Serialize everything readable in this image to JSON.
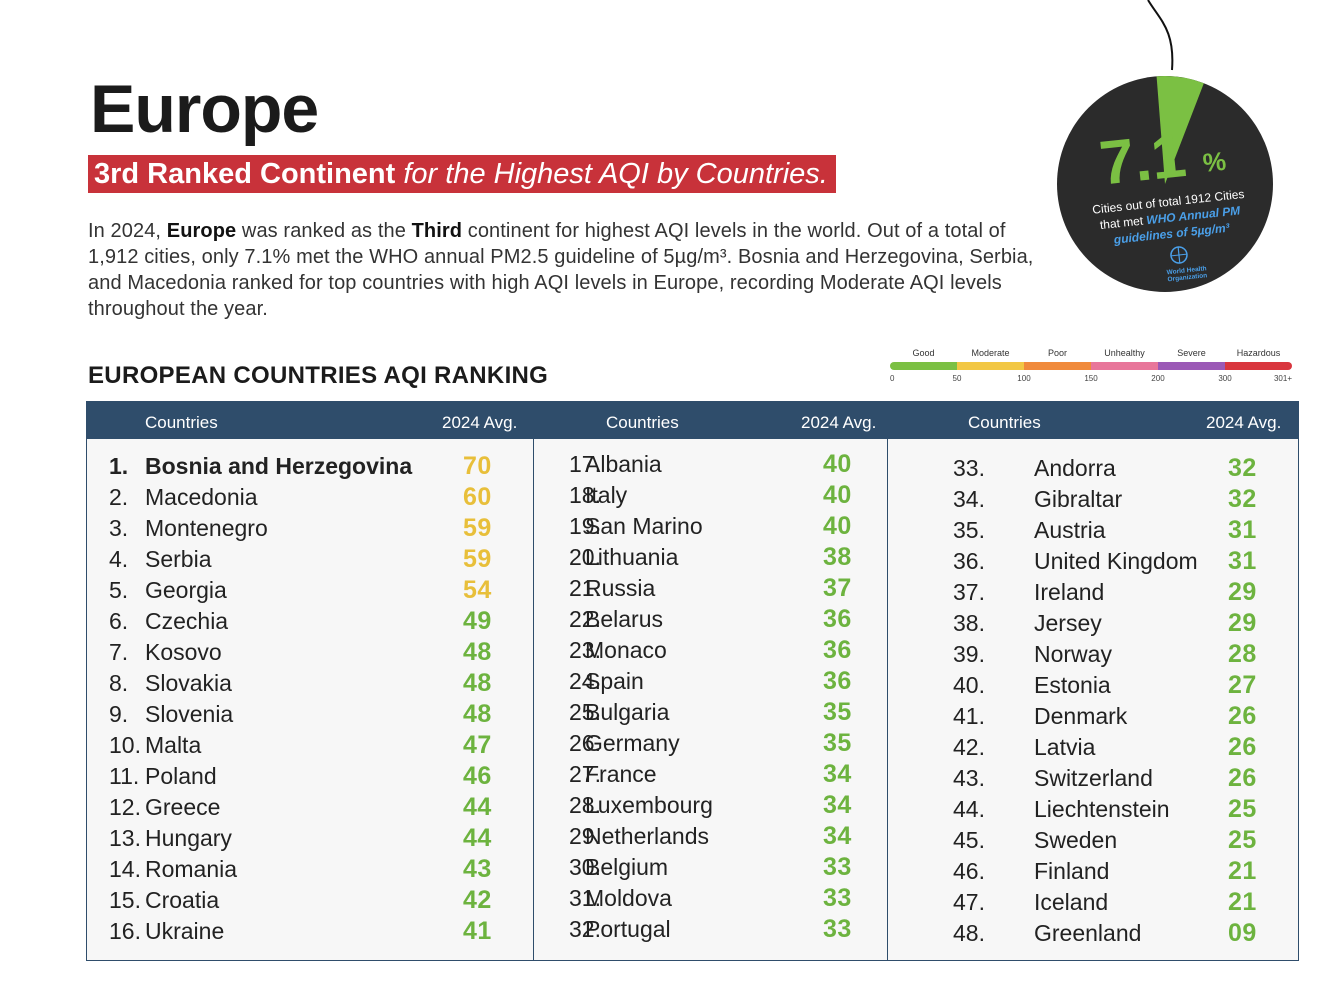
{
  "title": "Europe",
  "banner": {
    "bold": "3rd Ranked Continent",
    "italic": "for the Highest AQI by Countries."
  },
  "intro": {
    "p1": "In 2024, ",
    "b1": "Europe",
    "p2": " was ranked as the ",
    "b2": "Third",
    "p3": " continent for highest AQI levels in the world. Out of a total of 1,912 cities, only 7.1% met the WHO annual PM2.5 guideline of 5µg/m³. Bosnia and Herzegovina, Serbia, and Macedonia ranked for top countries with high AQI levels in Europe, recording Moderate AQI levels throughout the year."
  },
  "badge": {
    "value": "7.1",
    "unit": "%",
    "line1": "Cities out of total 1912 Cities",
    "line2a": "that met ",
    "line2b": "WHO Annual PM",
    "line3": "guidelines of 5µg/m³",
    "org1": "World Health",
    "org2": "Organization",
    "fraction": 0.071,
    "colors": {
      "disc": "#2b2b2b",
      "wedge": "#7bc043",
      "value": "#7bc043",
      "link": "#4a9fe8"
    }
  },
  "section_title": "EUROPEAN COUNTRIES AQI RANKING",
  "scale": {
    "categories": [
      "Good",
      "Moderate",
      "Poor",
      "Unhealthy",
      "Severe",
      "Hazardous"
    ],
    "colors": [
      "#7bc043",
      "#f2c744",
      "#f08a3c",
      "#e8769a",
      "#9b59b6",
      "#d9363e"
    ],
    "ticks": [
      "0",
      "50",
      "100",
      "150",
      "200",
      "300",
      "301+"
    ]
  },
  "table": {
    "headers": [
      {
        "country": "Countries",
        "avg": "2024 Avg."
      },
      {
        "country": "Countries",
        "avg": "2024 Avg."
      },
      {
        "country": "Countries",
        "avg": "2024 Avg."
      }
    ],
    "colors": {
      "moderate": "#e8bf3a",
      "good": "#6db33f",
      "header": "#2f4d6b"
    },
    "columns": [
      [
        {
          "rank": "1.",
          "name": "Bosnia and Herzegovina",
          "value": "70",
          "level": "moderate"
        },
        {
          "rank": "2.",
          "name": "Macedonia",
          "value": "60",
          "level": "moderate"
        },
        {
          "rank": "3.",
          "name": "Montenegro",
          "value": "59",
          "level": "moderate"
        },
        {
          "rank": "4.",
          "name": "Serbia",
          "value": "59",
          "level": "moderate"
        },
        {
          "rank": "5.",
          "name": "Georgia",
          "value": "54",
          "level": "moderate"
        },
        {
          "rank": "6.",
          "name": "Czechia",
          "value": "49",
          "level": "good"
        },
        {
          "rank": "7.",
          "name": "Kosovo",
          "value": "48",
          "level": "good"
        },
        {
          "rank": "8.",
          "name": "Slovakia",
          "value": "48",
          "level": "good"
        },
        {
          "rank": "9.",
          "name": "Slovenia",
          "value": "48",
          "level": "good"
        },
        {
          "rank": "10.",
          "name": "Malta",
          "value": "47",
          "level": "good"
        },
        {
          "rank": "11.",
          "name": "Poland",
          "value": "46",
          "level": "good"
        },
        {
          "rank": "12.",
          "name": "Greece",
          "value": "44",
          "level": "good"
        },
        {
          "rank": "13.",
          "name": "Hungary",
          "value": "44",
          "level": "good"
        },
        {
          "rank": "14.",
          "name": "Romania",
          "value": "43",
          "level": "good"
        },
        {
          "rank": "15.",
          "name": "Croatia",
          "value": "42",
          "level": "good"
        },
        {
          "rank": "16.",
          "name": "Ukraine",
          "value": "41",
          "level": "good"
        }
      ],
      [
        {
          "rank": "17.",
          "name": "Albania",
          "value": "40",
          "level": "good"
        },
        {
          "rank": "18.",
          "name": "Italy",
          "value": "40",
          "level": "good"
        },
        {
          "rank": "19.",
          "name": "San Marino",
          "value": "40",
          "level": "good"
        },
        {
          "rank": "20.",
          "name": "Lithuania",
          "value": "38",
          "level": "good"
        },
        {
          "rank": "21.",
          "name": "Russia",
          "value": "37",
          "level": "good"
        },
        {
          "rank": "22.",
          "name": "Belarus",
          "value": "36",
          "level": "good"
        },
        {
          "rank": "23.",
          "name": "Monaco",
          "value": "36",
          "level": "good"
        },
        {
          "rank": "24.",
          "name": "Spain",
          "value": "36",
          "level": "good"
        },
        {
          "rank": "25.",
          "name": "Bulgaria",
          "value": "35",
          "level": "good"
        },
        {
          "rank": "26.",
          "name": "Germany",
          "value": "35",
          "level": "good"
        },
        {
          "rank": "27.",
          "name": "France",
          "value": "34",
          "level": "good"
        },
        {
          "rank": "28.",
          "name": "Luxembourg",
          "value": "34",
          "level": "good"
        },
        {
          "rank": "29.",
          "name": "Netherlands",
          "value": "34",
          "level": "good"
        },
        {
          "rank": "30.",
          "name": "Belgium",
          "value": "33",
          "level": "good"
        },
        {
          "rank": "31.",
          "name": "Moldova",
          "value": "33",
          "level": "good"
        },
        {
          "rank": "32.",
          "name": "Portugal",
          "value": "33",
          "level": "good"
        }
      ],
      [
        {
          "rank": "33.",
          "name": "Andorra",
          "value": "32",
          "level": "good"
        },
        {
          "rank": "34.",
          "name": "Gibraltar",
          "value": "32",
          "level": "good"
        },
        {
          "rank": "35.",
          "name": "Austria",
          "value": "31",
          "level": "good"
        },
        {
          "rank": "36.",
          "name": "United Kingdom",
          "value": "31",
          "level": "good"
        },
        {
          "rank": "37.",
          "name": "Ireland",
          "value": "29",
          "level": "good"
        },
        {
          "rank": "38.",
          "name": "Jersey",
          "value": "29",
          "level": "good"
        },
        {
          "rank": "39.",
          "name": "Norway",
          "value": "28",
          "level": "good"
        },
        {
          "rank": "40.",
          "name": "Estonia",
          "value": "27",
          "level": "good"
        },
        {
          "rank": "41.",
          "name": "Denmark",
          "value": "26",
          "level": "good"
        },
        {
          "rank": "42.",
          "name": "Latvia",
          "value": "26",
          "level": "good"
        },
        {
          "rank": "43.",
          "name": "Switzerland",
          "value": "26",
          "level": "good"
        },
        {
          "rank": "44.",
          "name": "Liechtenstein",
          "value": "25",
          "level": "good"
        },
        {
          "rank": "45.",
          "name": "Sweden",
          "value": "25",
          "level": "good"
        },
        {
          "rank": "46.",
          "name": "Finland",
          "value": "21",
          "level": "good"
        },
        {
          "rank": "47.",
          "name": "Iceland",
          "value": "21",
          "level": "good"
        },
        {
          "rank": "48.",
          "name": "Greenland",
          "value": "09",
          "level": "good"
        }
      ]
    ]
  }
}
